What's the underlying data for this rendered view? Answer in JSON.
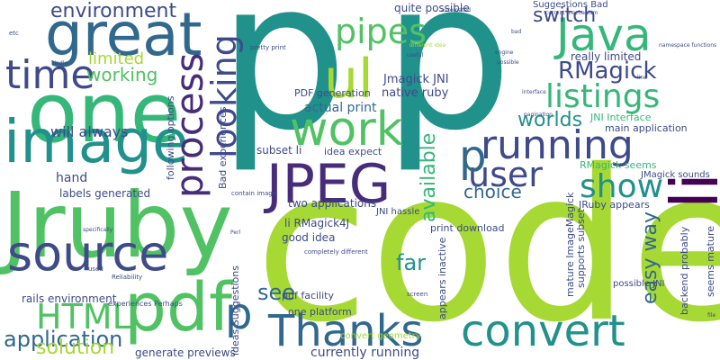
{
  "palette": {
    "yellow_green": "#a6d933",
    "green": "#50c263",
    "teal_green": "#35b779",
    "teal": "#21918c",
    "blue": "#31688e",
    "indigo": "#3e4a89",
    "purple": "#440154",
    "dark_purple": "#472c7a"
  },
  "words": {
    "code": "code",
    "p_big1": "p",
    "p_big2": "p",
    "jruby": "Jruby",
    "one": "one",
    "image": "image",
    "great": "great",
    "jpeg": "JPEG",
    "source": "source",
    "convert": "convert",
    "pdf": "pdf",
    "work": "work",
    "thanks": "Thanks",
    "running": "running",
    "java": "Java",
    "li": "li",
    "ul": "ul",
    "time": "time",
    "html": "HTML",
    "process": "process",
    "looking": "looking",
    "pipes": "pipes",
    "listings": "listings",
    "user": "user",
    "show": "show",
    "p_small1": "p",
    "p_small2": "p",
    "environment": "environment",
    "rmagick": "RMagick",
    "switch": "switch",
    "worlds": "worlds",
    "available": "available",
    "choice": "choice",
    "far": "far",
    "see": "see",
    "easy_way": "easy way",
    "application": "application",
    "solution": "solution",
    "generate_previews": "generate previews",
    "currently_running": "currently running",
    "working": "working",
    "limited": "limited",
    "hand": "hand",
    "will_always": "will always",
    "labels_generated": "labels generated",
    "actual_print": "actual print",
    "pdf_generation": "PDF generation",
    "jmagick_jni": "Jmagick JNI",
    "native_ruby": "native ruby",
    "really_limited": "really limited",
    "quite_possible": "quite possible",
    "suggestions_bad": "Suggestions Bad",
    "two_applications": "two applications",
    "print_download": "print download",
    "li_rmagick4j": "li RMagick4J",
    "good_idea": "good idea",
    "pdf_facility": "pdf facility",
    "one_platform": "one platform",
    "rails_environment": "rails environment",
    "jni_interface": "JNI Interface",
    "main_application": "main application",
    "rmagick_seems": "RMagick seems",
    "jmagick_sounds": "JMagick sounds",
    "jruby_appears": "JRuby appears",
    "possible_jni": "possible JNI",
    "following_options": "following options",
    "bad_experiences": "Bad experiences",
    "subset_li": "subset li",
    "idea_expect": "idea expect",
    "appears_inactive": "appears inactive",
    "mature_imagemagick": "mature ImageMagick",
    "supports_subset": "supports subset",
    "backend_probably": "backend probably",
    "seems_mature": "seems mature",
    "ideas_suggestions": "ideas Suggestions",
    "convert_geometry": "convert geometry",
    "jni_hassle": "JNI hassle",
    "completely_different": "completely different",
    "pretty_print": "pretty print",
    "experiences_perhaps": "experiences Perhaps",
    "reliability": "Reliability",
    "contain_image": "contain image",
    "screen": "screen",
    "used": "used",
    "etc": "etc",
    "kindle": "kindle",
    "automated": "automated",
    "different_idea": "different idea",
    "engine": "engine",
    "current_mechanism": "current mechanism",
    "namespace_functions": "namespace functions",
    "line": "line",
    "interface": "interface",
    "pagination": "pagination",
    "bad": "bad",
    "possible": "possible",
    "useful": "useful",
    "specifically": "specifically",
    "perl": "Perl",
    "file": "file"
  }
}
